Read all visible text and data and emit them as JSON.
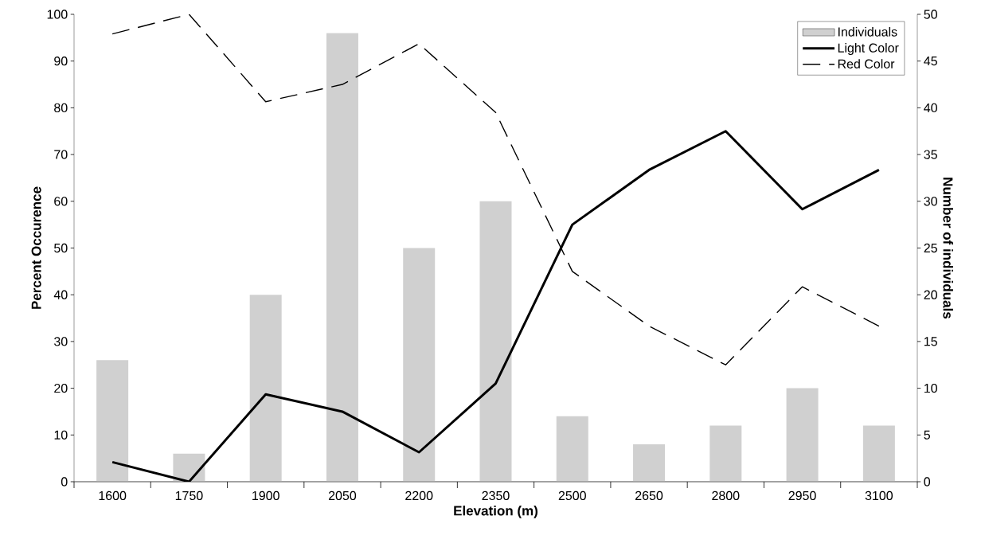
{
  "chart_data": {
    "type": "bar",
    "xlabel": "Elevation (m)",
    "ylabel": "Percent Occurence",
    "y2label": "Number of individuals",
    "categories": [
      "1600",
      "1750",
      "1900",
      "2050",
      "2200",
      "2350",
      "2500",
      "2650",
      "2800",
      "2950",
      "3100"
    ],
    "series": [
      {
        "name": "Individuals",
        "axis": "y2",
        "color": "#d0d0d0",
        "values": [
          13,
          3,
          20,
          48,
          25,
          30,
          7,
          4,
          6,
          10,
          6
        ]
      },
      {
        "name": "Light Color",
        "type": "line",
        "color": "#000000",
        "line_style": "solid",
        "values": [
          4.2,
          0,
          18.7,
          15,
          6.3,
          21,
          55,
          66.7,
          75,
          58.3,
          66.7
        ]
      },
      {
        "name": "Red Color",
        "type": "line",
        "color": "#000000",
        "line_style": "dashed",
        "values": [
          95.8,
          100,
          81.3,
          85,
          93.7,
          79,
          45,
          33.3,
          25,
          41.7,
          33.3
        ]
      }
    ],
    "ylim": [
      0,
      100
    ],
    "yticks": [
      0,
      10,
      20,
      30,
      40,
      50,
      60,
      70,
      80,
      90,
      100
    ],
    "y2lim": [
      0,
      50
    ],
    "y2ticks": [
      0,
      5,
      10,
      15,
      20,
      25,
      30,
      35,
      40,
      45,
      50
    ],
    "grid": false,
    "legend": "top right",
    "marker": "none"
  }
}
